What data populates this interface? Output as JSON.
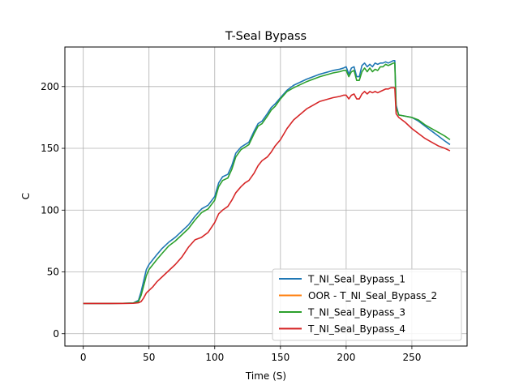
{
  "chart_data": {
    "type": "line",
    "title": "T-Seal Bypass",
    "xlabel": "Time (S)",
    "ylabel": "C",
    "xlim": [
      -14,
      292
    ],
    "ylim": [
      -10,
      232
    ],
    "xticks": [
      0,
      50,
      100,
      150,
      200,
      250
    ],
    "yticks": [
      0,
      50,
      100,
      150,
      200
    ],
    "grid": true,
    "legend_position": "lower-right",
    "series": [
      {
        "name": "T_NI_Seal_Bypass_1",
        "color": "#1f77b4",
        "x": [
          0,
          10,
          20,
          30,
          38,
          42,
          44,
          46,
          48,
          50,
          53,
          56,
          60,
          65,
          70,
          75,
          80,
          85,
          90,
          95,
          100,
          103,
          106,
          110,
          113,
          116,
          120,
          123,
          126,
          130,
          133,
          136,
          140,
          143,
          146,
          150,
          155,
          160,
          170,
          180,
          190,
          195,
          198,
          200,
          202,
          204,
          206,
          208,
          210,
          212,
          214,
          216,
          218,
          220,
          222,
          224,
          226,
          228,
          230,
          232,
          234,
          236,
          237,
          238,
          240,
          245,
          250,
          255,
          260,
          265,
          270,
          275,
          279
        ],
        "values": [
          24.5,
          24.5,
          24.5,
          24.6,
          24.8,
          27,
          34,
          43,
          52,
          56,
          60,
          64,
          69,
          74,
          78,
          83,
          88,
          95,
          101,
          104,
          111,
          122,
          127,
          129,
          136,
          146,
          151,
          153,
          155,
          164,
          170,
          172,
          178,
          183,
          186,
          191,
          197,
          201,
          206,
          210,
          213,
          214,
          215,
          216,
          210,
          215,
          216,
          208,
          208,
          217,
          219,
          216,
          218,
          216,
          219,
          218,
          219,
          219,
          220,
          219,
          220,
          221,
          221,
          185,
          177,
          176,
          175,
          172,
          168,
          164,
          160,
          156,
          153
        ]
      },
      {
        "name": "OOR - T_NI_Seal_Bypass_2",
        "color": "#ff7f0e",
        "x": [],
        "values": []
      },
      {
        "name": "T_NI_Seal_Bypass_3",
        "color": "#2ca02c",
        "x": [
          0,
          10,
          20,
          30,
          38,
          42,
          44,
          46,
          48,
          50,
          53,
          56,
          60,
          65,
          70,
          75,
          80,
          85,
          90,
          95,
          100,
          103,
          106,
          110,
          113,
          116,
          120,
          123,
          126,
          130,
          133,
          136,
          140,
          143,
          146,
          150,
          155,
          160,
          170,
          180,
          190,
          195,
          198,
          200,
          202,
          204,
          206,
          208,
          210,
          212,
          214,
          216,
          218,
          220,
          222,
          224,
          226,
          228,
          230,
          232,
          234,
          236,
          237,
          238,
          240,
          245,
          250,
          255,
          260,
          265,
          270,
          275,
          279
        ],
        "values": [
          24.5,
          24.5,
          24.5,
          24.6,
          24.8,
          26,
          31,
          39,
          47,
          52,
          56,
          60,
          65,
          71,
          75,
          80,
          85,
          92,
          98,
          101,
          108,
          119,
          124,
          126,
          133,
          143,
          149,
          151,
          153,
          162,
          168,
          170,
          176,
          181,
          184,
          190,
          196,
          199,
          204,
          208,
          211,
          212,
          213,
          213,
          208,
          212,
          213,
          205,
          205,
          212,
          215,
          212,
          215,
          212,
          214,
          213,
          216,
          216,
          218,
          217,
          218,
          219,
          219,
          183,
          177,
          176,
          175,
          173,
          169,
          166,
          163,
          160,
          157
        ]
      },
      {
        "name": "T_NI_Seal_Bypass_4",
        "color": "#d62728",
        "x": [
          0,
          10,
          20,
          30,
          38,
          42,
          44,
          46,
          48,
          50,
          53,
          56,
          60,
          65,
          70,
          75,
          80,
          85,
          90,
          95,
          100,
          103,
          106,
          110,
          113,
          116,
          120,
          123,
          126,
          130,
          133,
          136,
          140,
          143,
          146,
          150,
          155,
          160,
          170,
          180,
          190,
          195,
          198,
          200,
          202,
          204,
          206,
          208,
          210,
          212,
          214,
          216,
          218,
          220,
          222,
          224,
          226,
          228,
          230,
          232,
          234,
          236,
          237,
          238,
          240,
          245,
          250,
          255,
          260,
          265,
          270,
          275,
          279
        ],
        "values": [
          24.5,
          24.5,
          24.5,
          24.5,
          24.6,
          25,
          26,
          29,
          33,
          35,
          38,
          42,
          46,
          51,
          56,
          62,
          70,
          76,
          78,
          82,
          90,
          97,
          100,
          103,
          108,
          114,
          119,
          122,
          124,
          130,
          136,
          140,
          143,
          147,
          152,
          157,
          166,
          173,
          182,
          188,
          191,
          192,
          193,
          193,
          190,
          193,
          194,
          190,
          190,
          194,
          196,
          194,
          196,
          195,
          196,
          195,
          196,
          197,
          198,
          198,
          199,
          199,
          199,
          178,
          175,
          171,
          166,
          162,
          158,
          155,
          152,
          150,
          148
        ]
      }
    ]
  }
}
